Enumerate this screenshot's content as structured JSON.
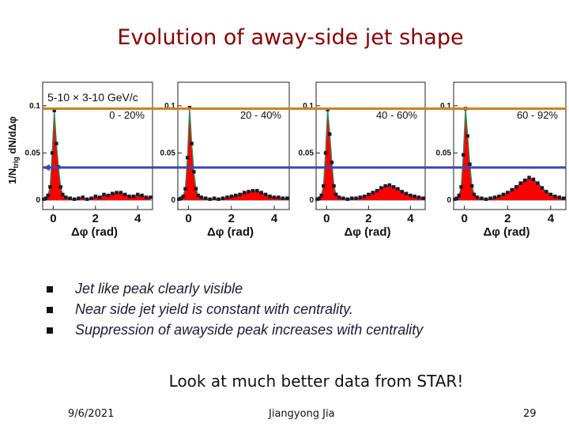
{
  "slide": {
    "title": "Evolution of away-side jet shape",
    "bullets": [
      "Jet like peak clearly visible",
      "Near side jet yield is constant with centrality.",
      "Suppression of awayside peak increases with centrality"
    ],
    "callout": "Look at much better data from STAR!",
    "footer": {
      "date": "9/6/2021",
      "author": "Jiangyong Jia",
      "page": "29"
    }
  },
  "chart_data": {
    "type": "scatter",
    "title": "",
    "annotation": "5-10 × 3-10 GeV/c",
    "ylabel": "1/Ntrig dN/dΔφ",
    "ylabel_parts": {
      "main": "1/N",
      "sub": "trig",
      "rest": " dN/dΔφ"
    },
    "xlabel": "Δφ (rad)",
    "xlim": [
      -0.5,
      4.7
    ],
    "ylim": [
      -0.01,
      0.125
    ],
    "xticks": [
      "0",
      "2",
      "4"
    ],
    "yticks": [
      {
        "label": "0",
        "value": 0
      },
      {
        "label": "0.05",
        "value": 0.05
      },
      {
        "label": "0.1",
        "value": 0.1
      }
    ],
    "reference_lines": [
      {
        "value": 0.097,
        "color": "#d97a1a"
      },
      {
        "value": 0.0345,
        "color": "#3b45b0"
      }
    ],
    "colors": {
      "fill": "#ff0000",
      "points": "#1a1a2e",
      "fit": "#2e8b57"
    },
    "panels": [
      {
        "name": "0 - 20%",
        "x": [
          -0.45,
          -0.35,
          -0.25,
          -0.15,
          -0.05,
          0.05,
          0.15,
          0.25,
          0.35,
          0.45,
          0.6,
          0.8,
          1.0,
          1.2,
          1.4,
          1.6,
          1.8,
          2.0,
          2.2,
          2.4,
          2.6,
          2.8,
          3.0,
          3.2,
          3.4,
          3.6,
          3.8,
          4.0,
          4.2,
          4.4,
          4.6
        ],
        "y": [
          0.001,
          0.002,
          0.005,
          0.014,
          0.05,
          0.095,
          0.06,
          0.035,
          0.014,
          0.006,
          0.003,
          0.002,
          0.001,
          0.002,
          0.003,
          0.001,
          0.002,
          0.004,
          0.003,
          0.006,
          0.005,
          0.007,
          0.008,
          0.008,
          0.006,
          0.004,
          0.004,
          0.006,
          0.005,
          0.003,
          0.003
        ]
      },
      {
        "name": "20 - 40%",
        "x": [
          -0.45,
          -0.35,
          -0.25,
          -0.15,
          -0.05,
          0.05,
          0.15,
          0.25,
          0.35,
          0.45,
          0.6,
          0.8,
          1.0,
          1.2,
          1.4,
          1.6,
          1.8,
          2.0,
          2.2,
          2.4,
          2.6,
          2.8,
          3.0,
          3.2,
          3.4,
          3.6,
          3.8,
          4.0,
          4.2,
          4.4,
          4.6
        ],
        "y": [
          0.001,
          0.002,
          0.004,
          0.012,
          0.045,
          0.098,
          0.06,
          0.03,
          0.012,
          0.005,
          0.003,
          0.002,
          0.001,
          0.002,
          0.001,
          0.002,
          0.003,
          0.004,
          0.005,
          0.006,
          0.008,
          0.009,
          0.01,
          0.01,
          0.008,
          0.006,
          0.004,
          0.003,
          0.003,
          0.002,
          0.002
        ]
      },
      {
        "name": "40 - 60%",
        "x": [
          -0.45,
          -0.35,
          -0.25,
          -0.15,
          -0.05,
          0.05,
          0.15,
          0.25,
          0.35,
          0.45,
          0.6,
          0.8,
          1.0,
          1.2,
          1.4,
          1.6,
          1.8,
          2.0,
          2.2,
          2.4,
          2.6,
          2.8,
          3.0,
          3.2,
          3.4,
          3.6,
          3.8,
          4.0,
          4.2,
          4.4,
          4.6
        ],
        "y": [
          0.001,
          0.002,
          0.005,
          0.015,
          0.05,
          0.096,
          0.07,
          0.04,
          0.015,
          0.006,
          0.003,
          0.002,
          0.001,
          0.002,
          0.002,
          0.003,
          0.004,
          0.006,
          0.008,
          0.01,
          0.013,
          0.015,
          0.016,
          0.014,
          0.012,
          0.009,
          0.007,
          0.005,
          0.004,
          0.003,
          0.002
        ]
      },
      {
        "name": "60 - 92%",
        "x": [
          -0.45,
          -0.35,
          -0.25,
          -0.15,
          -0.05,
          0.05,
          0.15,
          0.25,
          0.35,
          0.45,
          0.6,
          0.8,
          1.0,
          1.2,
          1.4,
          1.6,
          1.8,
          2.0,
          2.2,
          2.4,
          2.6,
          2.8,
          3.0,
          3.2,
          3.4,
          3.6,
          3.8,
          4.0,
          4.2,
          4.4,
          4.6
        ],
        "y": [
          0.001,
          0.002,
          0.005,
          0.014,
          0.048,
          0.097,
          0.068,
          0.038,
          0.015,
          0.006,
          0.003,
          0.002,
          0.001,
          0.002,
          0.003,
          0.004,
          0.006,
          0.008,
          0.011,
          0.014,
          0.018,
          0.021,
          0.024,
          0.022,
          0.018,
          0.013,
          0.009,
          0.006,
          0.004,
          0.003,
          0.002
        ]
      }
    ]
  }
}
